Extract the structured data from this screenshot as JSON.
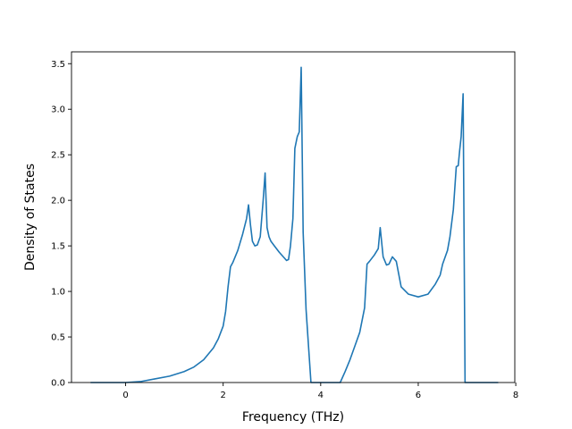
{
  "chart_data": {
    "type": "line",
    "title": "",
    "xlabel": "Frequency (THz)",
    "ylabel": "Density of States",
    "xlim": [
      -1.11,
      7.98
    ],
    "ylim": [
      0,
      3.63
    ],
    "xticks": [
      0,
      2,
      4,
      6,
      8
    ],
    "xtick_labels": [
      "0",
      "2",
      "4",
      "6",
      "8"
    ],
    "yticks": [
      0.0,
      0.5,
      1.0,
      1.5,
      2.0,
      2.5,
      3.0,
      3.5
    ],
    "ytick_labels": [
      "0.0",
      "0.5",
      "1.0",
      "1.5",
      "2.0",
      "2.5",
      "3.0",
      "3.5"
    ],
    "grid": false,
    "legend": "none",
    "colors": {
      "line": "#1f77b4",
      "axes": "#000000",
      "background": "#ffffff"
    },
    "series": [
      {
        "x": [
          -0.72,
          0.0,
          0.3,
          0.6,
          0.9,
          1.2,
          1.4,
          1.6,
          1.8,
          1.9,
          2.0,
          2.05,
          2.1,
          2.15,
          2.2,
          2.3,
          2.4,
          2.48,
          2.52,
          2.56,
          2.6,
          2.65,
          2.7,
          2.76,
          2.82,
          2.86,
          2.9,
          2.94,
          2.98,
          3.05,
          3.15,
          3.25,
          3.3,
          3.34,
          3.38,
          3.43,
          3.47,
          3.52,
          3.56,
          3.6,
          3.64,
          3.7,
          3.8,
          4.2,
          4.4,
          4.5,
          4.6,
          4.7,
          4.8,
          4.9,
          4.95,
          5.0,
          5.1,
          5.18,
          5.22,
          5.28,
          5.35,
          5.4,
          5.47,
          5.55,
          5.65,
          5.8,
          6.0,
          6.2,
          6.35,
          6.45,
          6.5,
          6.6,
          6.65,
          6.72,
          6.78,
          6.82,
          6.85,
          6.88,
          6.92,
          6.96,
          7.2,
          7.64
        ],
        "y": [
          0.0,
          0.0,
          0.01,
          0.04,
          0.07,
          0.12,
          0.17,
          0.25,
          0.38,
          0.48,
          0.62,
          0.78,
          1.05,
          1.27,
          1.32,
          1.45,
          1.63,
          1.8,
          1.95,
          1.73,
          1.55,
          1.5,
          1.51,
          1.6,
          2.0,
          2.3,
          1.7,
          1.6,
          1.55,
          1.5,
          1.43,
          1.37,
          1.34,
          1.35,
          1.5,
          1.8,
          2.57,
          2.7,
          2.75,
          3.46,
          1.65,
          0.8,
          0.0,
          0.0,
          0.0,
          0.12,
          0.25,
          0.4,
          0.55,
          0.82,
          1.3,
          1.33,
          1.4,
          1.47,
          1.7,
          1.38,
          1.29,
          1.3,
          1.38,
          1.33,
          1.05,
          0.97,
          0.94,
          0.97,
          1.08,
          1.18,
          1.3,
          1.45,
          1.6,
          1.9,
          2.37,
          2.38,
          2.55,
          2.7,
          3.17,
          0.0,
          0.0,
          0.0
        ]
      }
    ]
  }
}
